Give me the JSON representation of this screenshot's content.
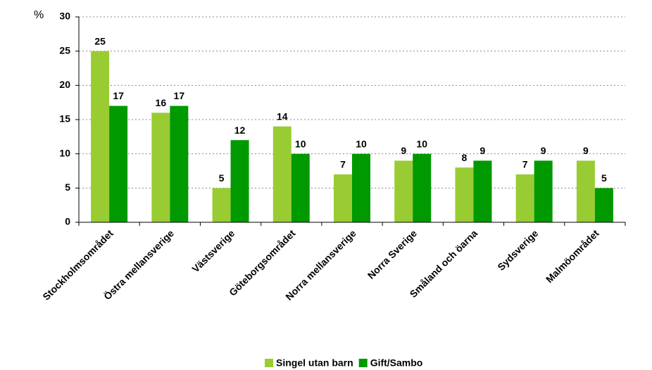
{
  "chart_data": {
    "type": "bar",
    "y_label": "%",
    "categories": [
      "Stockholmsområdet",
      "Östra mellansverige",
      "Västsverige",
      "Göteborgsområdet",
      "Norra mellansverige",
      "Norra Sverige",
      "Småland och öarna",
      "Sydsverige",
      "Malmöområdet"
    ],
    "series": [
      {
        "name": "Singel utan barn",
        "color": "#99cc33",
        "values": [
          25,
          16,
          5,
          14,
          7,
          9,
          8,
          7,
          9
        ]
      },
      {
        "name": "Gift/Sambo",
        "color": "#009900",
        "values": [
          17,
          17,
          12,
          10,
          10,
          10,
          9,
          9,
          5
        ]
      }
    ],
    "ylim": [
      0,
      30
    ],
    "yticks": [
      0,
      5,
      10,
      15,
      20,
      25,
      30
    ],
    "grid": true,
    "legend": "bottom"
  }
}
